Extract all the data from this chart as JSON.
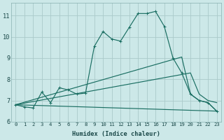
{
  "bg_color": "#cce8e8",
  "grid_color": "#aacaca",
  "line_color": "#1a6e62",
  "xlabel": "Humidex (Indice chaleur)",
  "xlim_min": -0.5,
  "xlim_max": 23.5,
  "ylim_min": 6.0,
  "ylim_max": 11.6,
  "yticks": [
    6,
    7,
    8,
    9,
    10,
    11
  ],
  "xticks": [
    0,
    1,
    2,
    3,
    4,
    5,
    6,
    7,
    8,
    9,
    10,
    11,
    12,
    13,
    14,
    15,
    16,
    17,
    18,
    19,
    20,
    21,
    22,
    23
  ],
  "line1_x": [
    0,
    1,
    2,
    3,
    4,
    5,
    6,
    7,
    8,
    9,
    10,
    11,
    12,
    13,
    14,
    15,
    16,
    17,
    18,
    19,
    20,
    21,
    22,
    23
  ],
  "line1_y": [
    6.8,
    6.7,
    6.65,
    7.4,
    6.9,
    7.6,
    7.5,
    7.3,
    7.35,
    9.55,
    10.25,
    9.9,
    9.8,
    10.45,
    11.1,
    11.1,
    11.2,
    10.5,
    9.0,
    8.3,
    7.3,
    7.0,
    6.9,
    6.5
  ],
  "line2_x": [
    0,
    19,
    20,
    21,
    22,
    23
  ],
  "line2_y": [
    6.8,
    9.05,
    7.3,
    7.0,
    6.9,
    6.5
  ],
  "line3_x": [
    0,
    20,
    21,
    22,
    23
  ],
  "line3_y": [
    6.8,
    8.3,
    7.3,
    7.0,
    6.9
  ],
  "line4_x": [
    0,
    23
  ],
  "line4_y": [
    6.8,
    6.5
  ]
}
